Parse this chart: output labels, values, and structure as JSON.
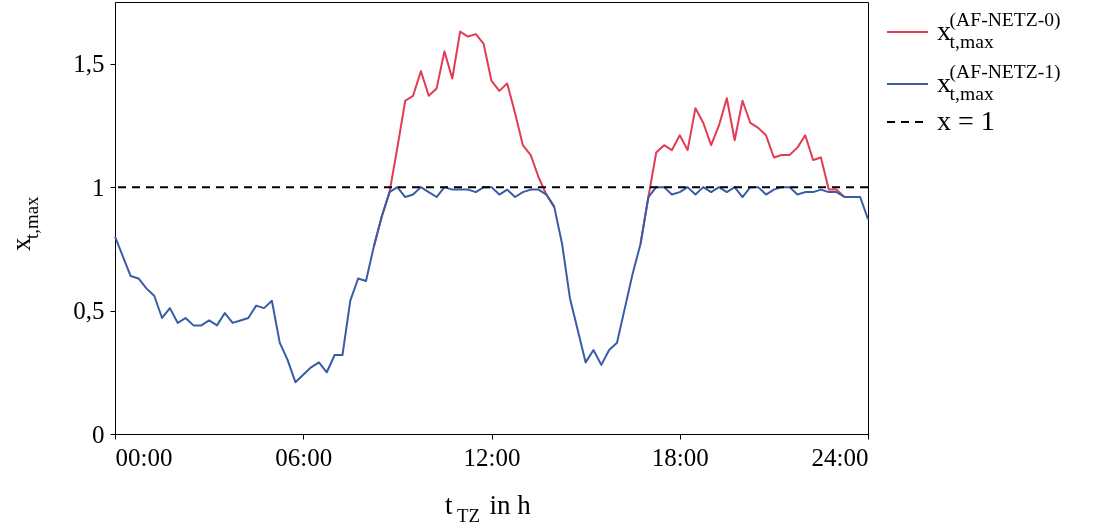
{
  "chart_data": {
    "type": "line",
    "xlabel": "t$_{TZ}$ in h",
    "ylabel": "x$_{t,max}$",
    "x": [
      0,
      0.25,
      0.5,
      0.75,
      1,
      1.25,
      1.5,
      1.75,
      2,
      2.25,
      2.5,
      2.75,
      3,
      3.25,
      3.5,
      3.75,
      4,
      4.25,
      4.5,
      4.75,
      5,
      5.25,
      5.5,
      5.75,
      6,
      6.25,
      6.5,
      6.75,
      7,
      7.25,
      7.5,
      7.75,
      8,
      8.25,
      8.5,
      8.75,
      9,
      9.25,
      9.5,
      9.75,
      10,
      10.25,
      10.5,
      10.75,
      11,
      11.25,
      11.5,
      11.75,
      12,
      12.25,
      12.5,
      12.75,
      13,
      13.25,
      13.5,
      13.75,
      14,
      14.25,
      14.5,
      14.75,
      15,
      15.25,
      15.5,
      15.75,
      16,
      16.25,
      16.5,
      16.75,
      17,
      17.25,
      17.5,
      17.75,
      18,
      18.25,
      18.5,
      18.75,
      19,
      19.25,
      19.5,
      19.75,
      20,
      20.25,
      20.5,
      20.75,
      21,
      21.25,
      21.5,
      21.75,
      22,
      22.25,
      22.5,
      22.75,
      23,
      23.25,
      23.5,
      23.75,
      24
    ],
    "series": [
      {
        "name": "x$^{(AF-NETZ-0)}$$_{t,max}$",
        "color": "#e23b53",
        "values": [
          null,
          null,
          null,
          null,
          null,
          null,
          null,
          null,
          null,
          null,
          null,
          null,
          null,
          null,
          null,
          null,
          null,
          null,
          null,
          null,
          null,
          null,
          null,
          null,
          null,
          null,
          null,
          null,
          null,
          null,
          null,
          null,
          null,
          0.76,
          0.88,
          0.98,
          1.16,
          1.35,
          1.37,
          1.47,
          1.37,
          1.4,
          1.55,
          1.44,
          1.63,
          1.61,
          1.62,
          1.58,
          1.43,
          1.39,
          1.42,
          1.3,
          1.17,
          1.13,
          1.04,
          0.97,
          0.92,
          null,
          null,
          null,
          null,
          null,
          null,
          null,
          null,
          null,
          null,
          0.77,
          0.96,
          1.14,
          1.17,
          1.15,
          1.21,
          1.15,
          1.32,
          1.26,
          1.17,
          1.25,
          1.36,
          1.19,
          1.35,
          1.26,
          1.24,
          1.21,
          1.12,
          1.13,
          1.13,
          1.16,
          1.21,
          1.11,
          1.12,
          0.99,
          0.99,
          0.96,
          null,
          null,
          null
        ]
      },
      {
        "name": "x$^{(AF-NETZ-1)}$$_{t,max}$",
        "color": "#3a5ca6",
        "values": [
          0.8,
          0.72,
          0.64,
          0.63,
          0.59,
          0.56,
          0.47,
          0.51,
          0.45,
          0.47,
          0.44,
          0.44,
          0.46,
          0.44,
          0.49,
          0.45,
          0.46,
          0.47,
          0.52,
          0.51,
          0.54,
          0.37,
          0.3,
          0.21,
          0.24,
          0.27,
          0.29,
          0.25,
          0.32,
          0.32,
          0.54,
          0.63,
          0.62,
          0.76,
          0.88,
          0.98,
          1.0,
          0.96,
          0.97,
          1.0,
          0.98,
          0.96,
          1.0,
          0.99,
          0.99,
          0.99,
          0.98,
          1.0,
          1.0,
          0.97,
          0.99,
          0.96,
          0.98,
          0.99,
          0.99,
          0.97,
          0.92,
          0.77,
          0.55,
          0.42,
          0.29,
          0.34,
          0.28,
          0.34,
          0.37,
          0.51,
          0.65,
          0.77,
          0.96,
          1.0,
          1.0,
          0.97,
          0.98,
          1.0,
          0.97,
          1.0,
          0.98,
          1.0,
          0.98,
          1.0,
          0.96,
          1.0,
          1.0,
          0.97,
          0.99,
          1.0,
          1.0,
          0.97,
          0.98,
          0.98,
          0.99,
          0.98,
          0.98,
          0.96,
          0.96,
          0.96,
          0.87
        ]
      }
    ],
    "ref_lines": [
      {
        "axis": "y",
        "value": 1,
        "label": "x = 1",
        "color": "#000000",
        "line_style": "dashed"
      }
    ],
    "xlim": [
      0,
      24
    ],
    "xticks": [
      {
        "value": 0,
        "label": "00:00"
      },
      {
        "value": 6,
        "label": "06:00"
      },
      {
        "value": 12,
        "label": "12:00"
      },
      {
        "value": 18,
        "label": "18:00"
      },
      {
        "value": 24,
        "label": "24:00"
      }
    ],
    "ylim": [
      0,
      1.75
    ],
    "yticks": [
      0,
      {
        "value": 0.5,
        "label": "0,5"
      },
      1,
      {
        "value": 1.5,
        "label": "1,5"
      }
    ],
    "grid": false,
    "legend": "right",
    "marker": "none",
    "line_style": "solid"
  }
}
